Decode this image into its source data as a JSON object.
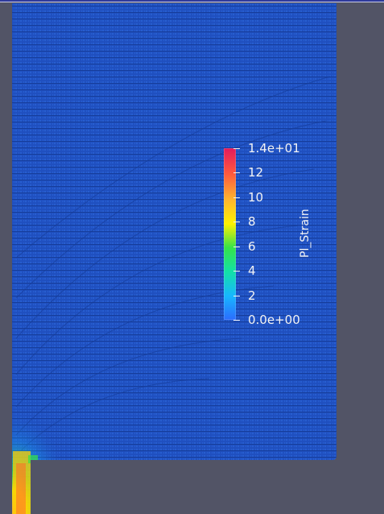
{
  "window": {
    "background_color": "#525466",
    "frame_color": "#2f3a9c"
  },
  "render": {
    "mesh_color": "#1f4fbf",
    "mesh_line_color": "#163d9a",
    "strain_hotspot": "bottom-left corner"
  },
  "colorbar": {
    "title": "Pl_Strain",
    "range": [
      0,
      14
    ],
    "colormap": [
      "#2b6cff",
      "#17b7ff",
      "#13e0a7",
      "#35e34a",
      "#fff200",
      "#ffb52e",
      "#ff5a3d",
      "#e31a5c"
    ],
    "ticks": [
      {
        "label": "1.4e+01"
      },
      {
        "label": "12"
      },
      {
        "label": "10"
      },
      {
        "label": "8"
      },
      {
        "label": "6"
      },
      {
        "label": "4"
      },
      {
        "label": "2"
      },
      {
        "label": "0.0e+00"
      }
    ]
  }
}
